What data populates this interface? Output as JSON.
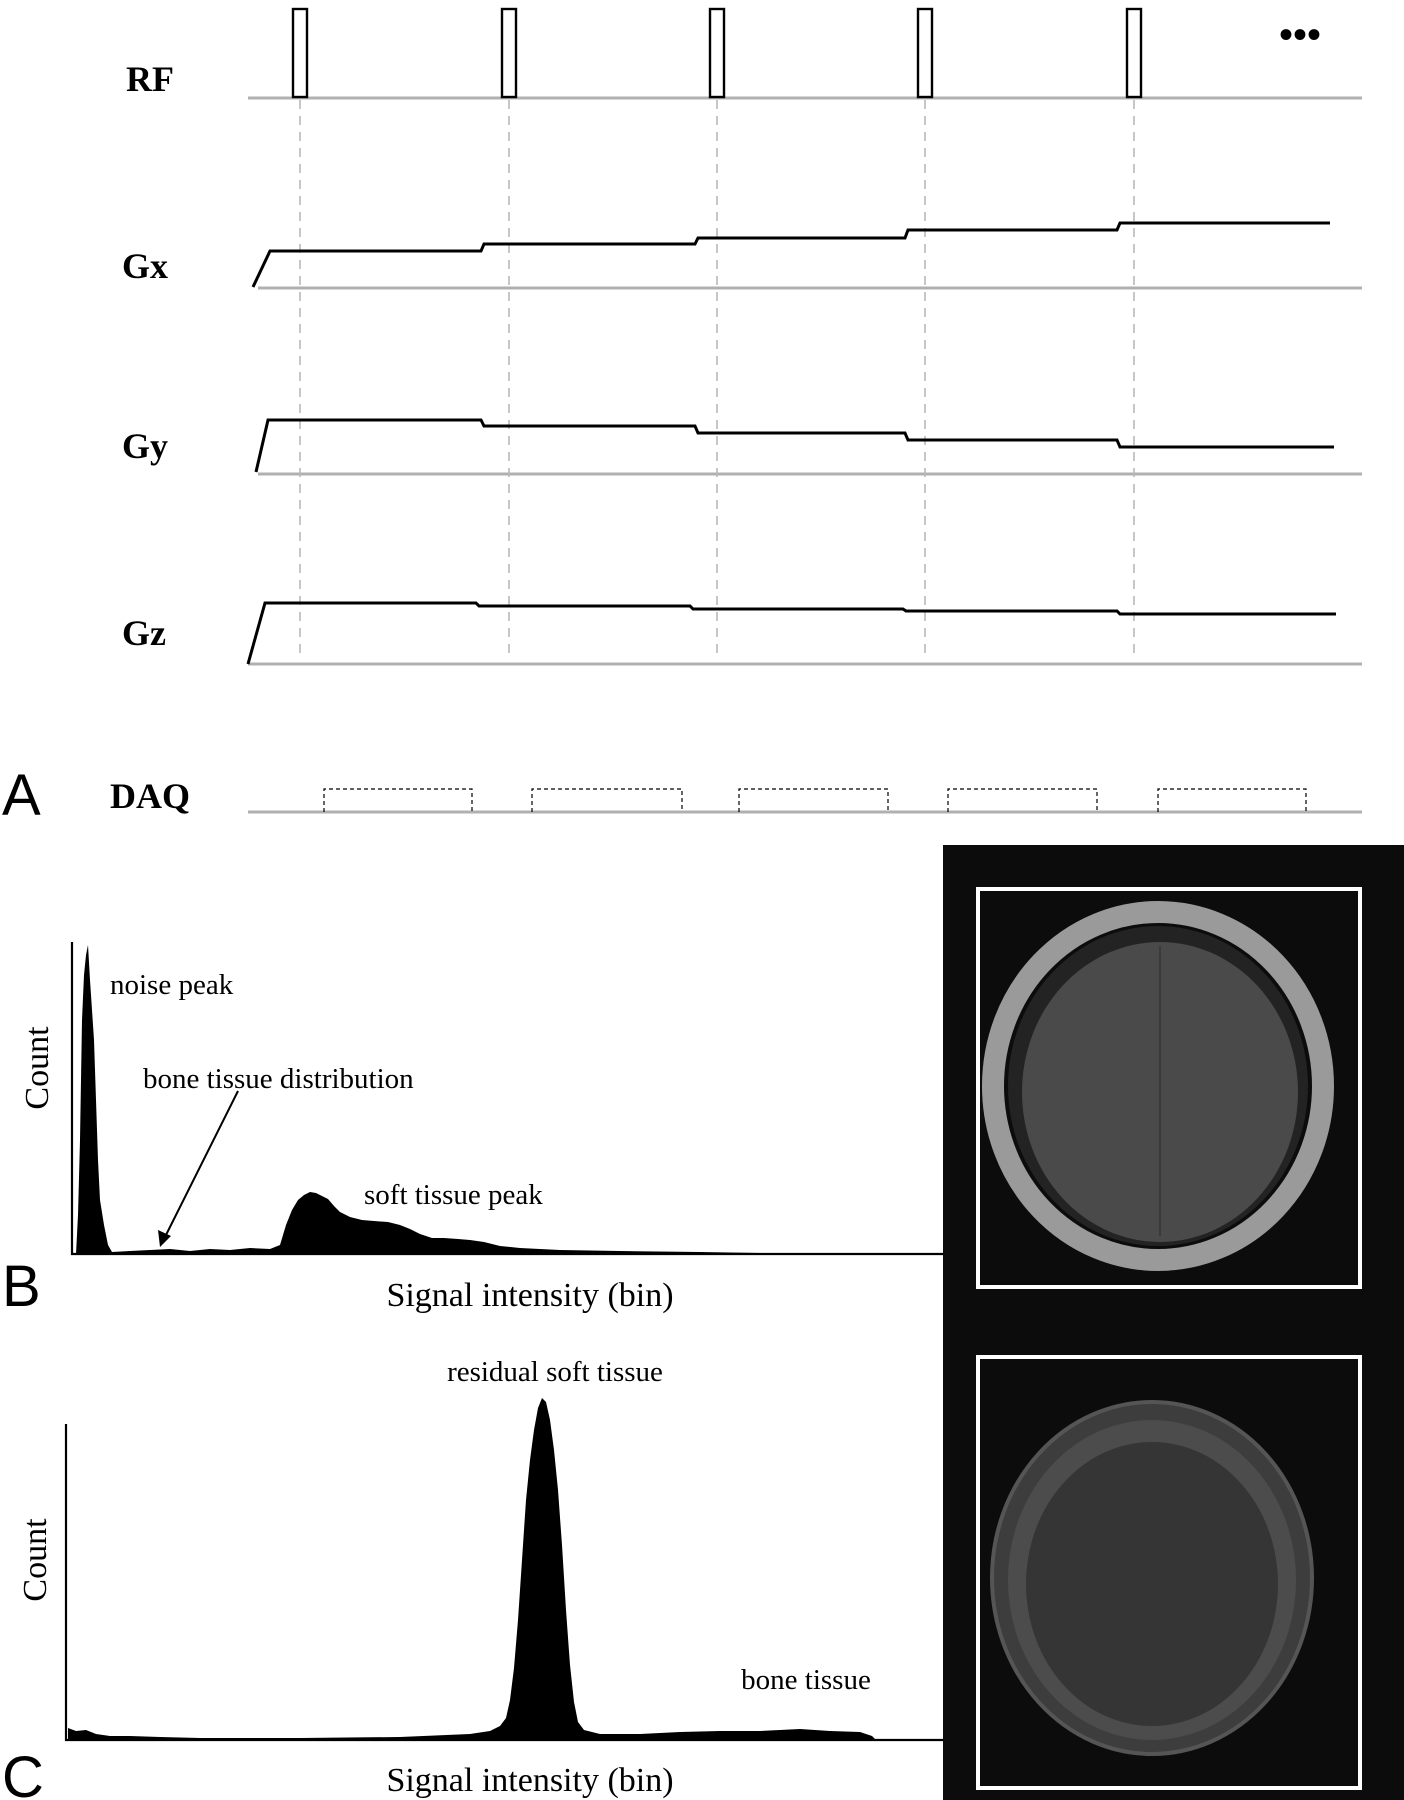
{
  "panel_a": {
    "letter": "A",
    "channels": [
      {
        "key": "rf",
        "label": "RF"
      },
      {
        "key": "gx",
        "label": "Gx"
      },
      {
        "key": "gy",
        "label": "Gy"
      },
      {
        "key": "gz",
        "label": "Gz"
      },
      {
        "key": "daq",
        "label": "DAQ"
      }
    ],
    "continuation_marker": "•••",
    "repetitions": 5
  },
  "panel_b": {
    "letter": "B",
    "ylabel": "Count",
    "xlabel": "Signal intensity (bin)",
    "annotations": {
      "noise_peak": "noise peak",
      "bone_distribution": "bone tissue distribution",
      "soft_tissue_peak": "soft tissue peak"
    }
  },
  "panel_c": {
    "letter": "C",
    "ylabel": "Count",
    "xlabel": "Signal intensity (bin)",
    "annotations": {
      "residual_soft_tissue": "residual soft tissue",
      "bone_tissue": "bone tissue"
    }
  },
  "colors": {
    "background": "#ffffff",
    "ink": "#000000",
    "baseline": "#b0b0b0",
    "mri_background": "#0c0c0c",
    "mri_frame": "#ffffff"
  }
}
